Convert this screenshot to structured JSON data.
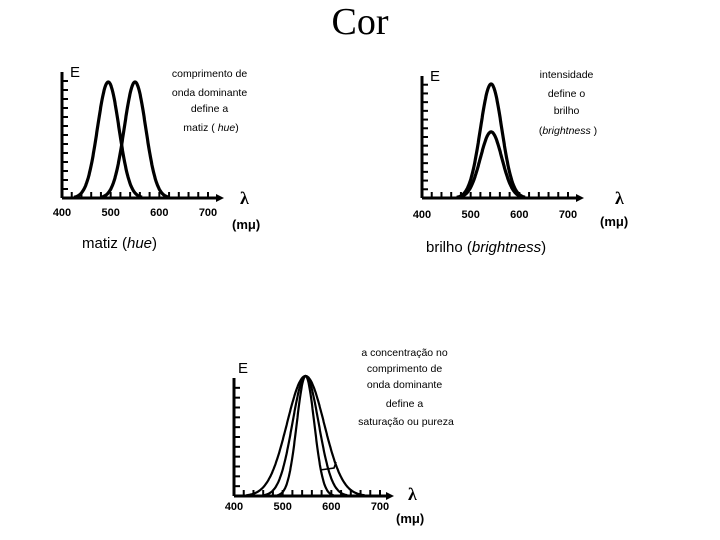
{
  "title": "Cor",
  "axes": {
    "y_label": "E",
    "x_symbol": "λ",
    "x_unit": "(mμ)",
    "x_ticks": [
      "400",
      "500",
      "600",
      "700"
    ]
  },
  "panels": [
    {
      "id": "hue",
      "note_lines": [
        "comprimento de",
        "onda dominante",
        "define a"
      ],
      "note_last_prefix": "matiz ( ",
      "note_last_italic": "hue",
      "note_last_suffix": ")",
      "caption_prefix": "matiz (",
      "caption_italic": "hue",
      "caption_suffix": ")"
    },
    {
      "id": "brightness",
      "note_lines": [
        "intensidade",
        "define o",
        "brilho"
      ],
      "note_last_prefix": "(",
      "note_last_italic": "brightness",
      "note_last_suffix": " )",
      "caption_prefix": "brilho (",
      "caption_italic": "brightness",
      "caption_suffix": ")"
    },
    {
      "id": "saturation",
      "note_lines": [
        "a concentração no",
        "comprimento de",
        "onda dominante",
        "define a",
        "saturação ou pureza"
      ]
    }
  ],
  "chart_data": [
    {
      "type": "line",
      "title": "",
      "xlabel": "λ (mμ)",
      "ylabel": "E",
      "xlim": [
        400,
        700
      ],
      "x_ticks": [
        400,
        500,
        600,
        700
      ],
      "series": [
        {
          "peak_wavelength": 495,
          "relative_peak": 1.0,
          "width": 22
        },
        {
          "peak_wavelength": 550,
          "relative_peak": 1.0,
          "width": 22
        }
      ]
    },
    {
      "type": "line",
      "title": "",
      "xlabel": "λ (mμ)",
      "ylabel": "E",
      "xlim": [
        400,
        700
      ],
      "x_ticks": [
        400,
        500,
        600,
        700
      ],
      "series": [
        {
          "peak_wavelength": 542,
          "relative_peak": 1.0,
          "width": 22
        },
        {
          "peak_wavelength": 542,
          "relative_peak": 0.58,
          "width": 22
        }
      ]
    },
    {
      "type": "line",
      "title": "",
      "xlabel": "λ (mμ)",
      "ylabel": "E",
      "xlim": [
        400,
        700
      ],
      "x_ticks": [
        400,
        500,
        600,
        700
      ],
      "series": [
        {
          "peak_wavelength": 547,
          "relative_peak": 1.0,
          "width": 18
        },
        {
          "peak_wavelength": 547,
          "relative_peak": 1.0,
          "width": 27
        },
        {
          "peak_wavelength": 547,
          "relative_peak": 1.0,
          "width": 38
        }
      ]
    }
  ]
}
